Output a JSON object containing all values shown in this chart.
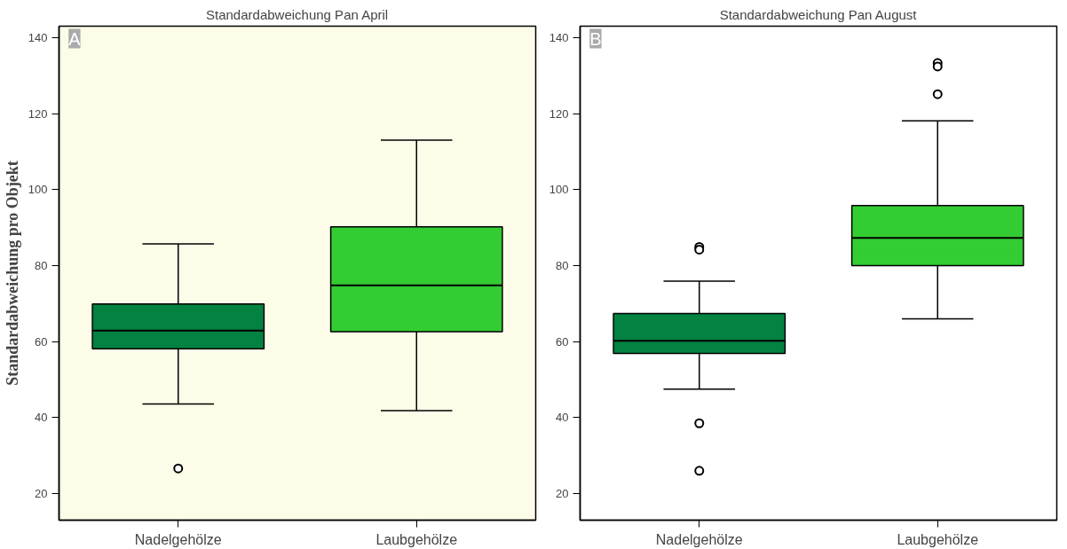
{
  "chart_data": [
    {
      "type": "box",
      "title": "Standardabweichung Pan April",
      "ylabel": "Standardabweichung pro Objekt",
      "categories": [
        "Nadelgehölze",
        "Laubgehölze"
      ],
      "colors": [
        "#038241",
        "#33cc33"
      ],
      "ylim": [
        13,
        143
      ],
      "yticks": [
        20,
        40,
        60,
        80,
        100,
        120,
        140
      ],
      "grid": false,
      "annotations": [
        "A"
      ],
      "boxes": [
        {
          "low": 43.6,
          "q1": 58.1,
          "median": 62.9,
          "q3": 69.9,
          "high": 85.7,
          "outliers": [
            26.6
          ]
        },
        {
          "low": 41.8,
          "q1": 62.6,
          "median": 74.8,
          "q3": 90.2,
          "high": 113.0
        }
      ]
    },
    {
      "type": "box",
      "title": "Standardabweichung Pan August",
      "categories": [
        "Nadelgehölze",
        "Laubgehölze"
      ],
      "colors": [
        "#038241",
        "#33cc33"
      ],
      "ylim": [
        13,
        143
      ],
      "yticks": [
        20,
        40,
        60,
        80,
        100,
        120,
        140
      ],
      "grid": false,
      "annotations": [
        "B"
      ],
      "boxes": [
        {
          "low": 47.5,
          "q1": 56.9,
          "median": 60.2,
          "q3": 67.4,
          "high": 75.9,
          "outliers": [
            84.9,
            84.2,
            38.5,
            26.0
          ]
        },
        {
          "low": 66.0,
          "q1": 80.0,
          "median": 87.3,
          "q3": 95.8,
          "high": 118.1,
          "outliers": [
            133.3,
            132.4,
            125.1
          ]
        }
      ]
    }
  ]
}
